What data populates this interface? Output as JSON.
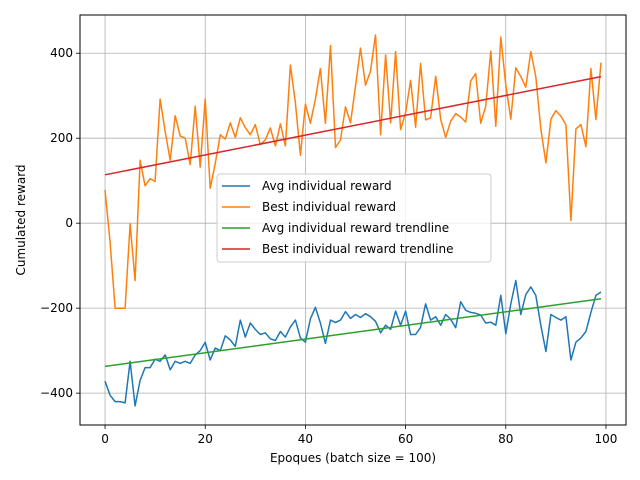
{
  "chart_data": {
    "type": "line",
    "xlabel": "Epoques (batch size = 100)",
    "ylabel": "Cumulated reward",
    "xlim": [
      -5,
      104
    ],
    "ylim": [
      -475,
      490
    ],
    "xticks": [
      0,
      20,
      40,
      60,
      80,
      100
    ],
    "yticks": [
      -400,
      -200,
      0,
      200,
      400
    ],
    "grid": true,
    "legend": "center-right",
    "series": [
      {
        "name": "Avg individual reward",
        "color": "#1f77b4",
        "x": [
          0,
          1,
          2,
          3,
          4,
          5,
          6,
          7,
          8,
          9,
          10,
          11,
          12,
          13,
          14,
          15,
          16,
          17,
          18,
          19,
          20,
          21,
          22,
          23,
          24,
          25,
          26,
          27,
          28,
          29,
          30,
          31,
          32,
          33,
          34,
          35,
          36,
          37,
          38,
          39,
          40,
          41,
          42,
          43,
          44,
          45,
          46,
          47,
          48,
          49,
          50,
          51,
          52,
          53,
          54,
          55,
          56,
          57,
          58,
          59,
          60,
          61,
          62,
          63,
          64,
          65,
          66,
          67,
          68,
          69,
          70,
          71,
          72,
          73,
          74,
          75,
          76,
          77,
          78,
          79,
          80,
          81,
          82,
          83,
          84,
          85,
          86,
          87,
          88,
          89,
          90,
          91,
          92,
          93,
          94,
          95,
          96,
          97,
          98,
          99
        ],
        "values": [
          -372,
          -405,
          -420,
          -420,
          -423,
          -325,
          -430,
          -370,
          -340,
          -340,
          -320,
          -325,
          -310,
          -345,
          -325,
          -330,
          -325,
          -330,
          -310,
          -300,
          -280,
          -322,
          -294,
          -300,
          -265,
          -275,
          -290,
          -228,
          -268,
          -235,
          -250,
          -262,
          -258,
          -272,
          -276,
          -255,
          -268,
          -244,
          -228,
          -270,
          -280,
          -225,
          -198,
          -235,
          -283,
          -228,
          -234,
          -228,
          -208,
          -224,
          -215,
          -222,
          -213,
          -220,
          -231,
          -258,
          -240,
          -250,
          -207,
          -240,
          -207,
          -262,
          -262,
          -245,
          -190,
          -228,
          -220,
          -240,
          -215,
          -226,
          -246,
          -185,
          -205,
          -210,
          -212,
          -216,
          -235,
          -233,
          -240,
          -170,
          -260,
          -190,
          -135,
          -215,
          -168,
          -150,
          -170,
          -240,
          -302,
          -215,
          -222,
          -228,
          -220,
          -322,
          -280,
          -270,
          -255,
          -210,
          -170,
          -162
        ]
      },
      {
        "name": "Best individual reward",
        "color": "#ff7f0e",
        "x": [
          0,
          1,
          2,
          3,
          4,
          5,
          6,
          7,
          8,
          9,
          10,
          11,
          12,
          13,
          14,
          15,
          16,
          17,
          18,
          19,
          20,
          21,
          22,
          23,
          24,
          25,
          26,
          27,
          28,
          29,
          30,
          31,
          32,
          33,
          34,
          35,
          36,
          37,
          38,
          39,
          40,
          41,
          42,
          43,
          44,
          45,
          46,
          47,
          48,
          49,
          50,
          51,
          52,
          53,
          54,
          55,
          56,
          57,
          58,
          59,
          60,
          61,
          62,
          63,
          64,
          65,
          66,
          67,
          68,
          69,
          70,
          71,
          72,
          73,
          74,
          75,
          76,
          77,
          78,
          79,
          80,
          81,
          82,
          83,
          84,
          85,
          86,
          87,
          88,
          89,
          90,
          91,
          92,
          93,
          94,
          95,
          96,
          97,
          98,
          99
        ],
        "values": [
          78,
          -45,
          -200,
          -200,
          -200,
          -2,
          -135,
          148,
          88,
          105,
          98,
          292,
          215,
          148,
          253,
          205,
          200,
          138,
          275,
          132,
          292,
          82,
          140,
          208,
          198,
          236,
          202,
          248,
          225,
          208,
          232,
          185,
          196,
          224,
          182,
          234,
          182,
          372,
          283,
          160,
          280,
          235,
          292,
          364,
          235,
          418,
          178,
          196,
          274,
          236,
          322,
          412,
          325,
          358,
          443,
          208,
          396,
          236,
          404,
          220,
          260,
          336,
          226,
          376,
          243,
          248,
          346,
          244,
          202,
          240,
          258,
          250,
          238,
          335,
          352,
          235,
          275,
          405,
          228,
          438,
          325,
          245,
          366,
          345,
          320,
          404,
          345,
          222,
          142,
          245,
          265,
          252,
          232,
          6,
          222,
          232,
          180,
          364,
          244,
          378
        ]
      },
      {
        "name": "Avg individual reward trendline",
        "color": "#2ca02c",
        "x": [
          0,
          99
        ],
        "values": [
          -337,
          -178
        ]
      },
      {
        "name": "Best individual reward trendline",
        "color": "#d62728",
        "x": [
          0,
          99
        ],
        "values": [
          114,
          345
        ]
      }
    ]
  }
}
